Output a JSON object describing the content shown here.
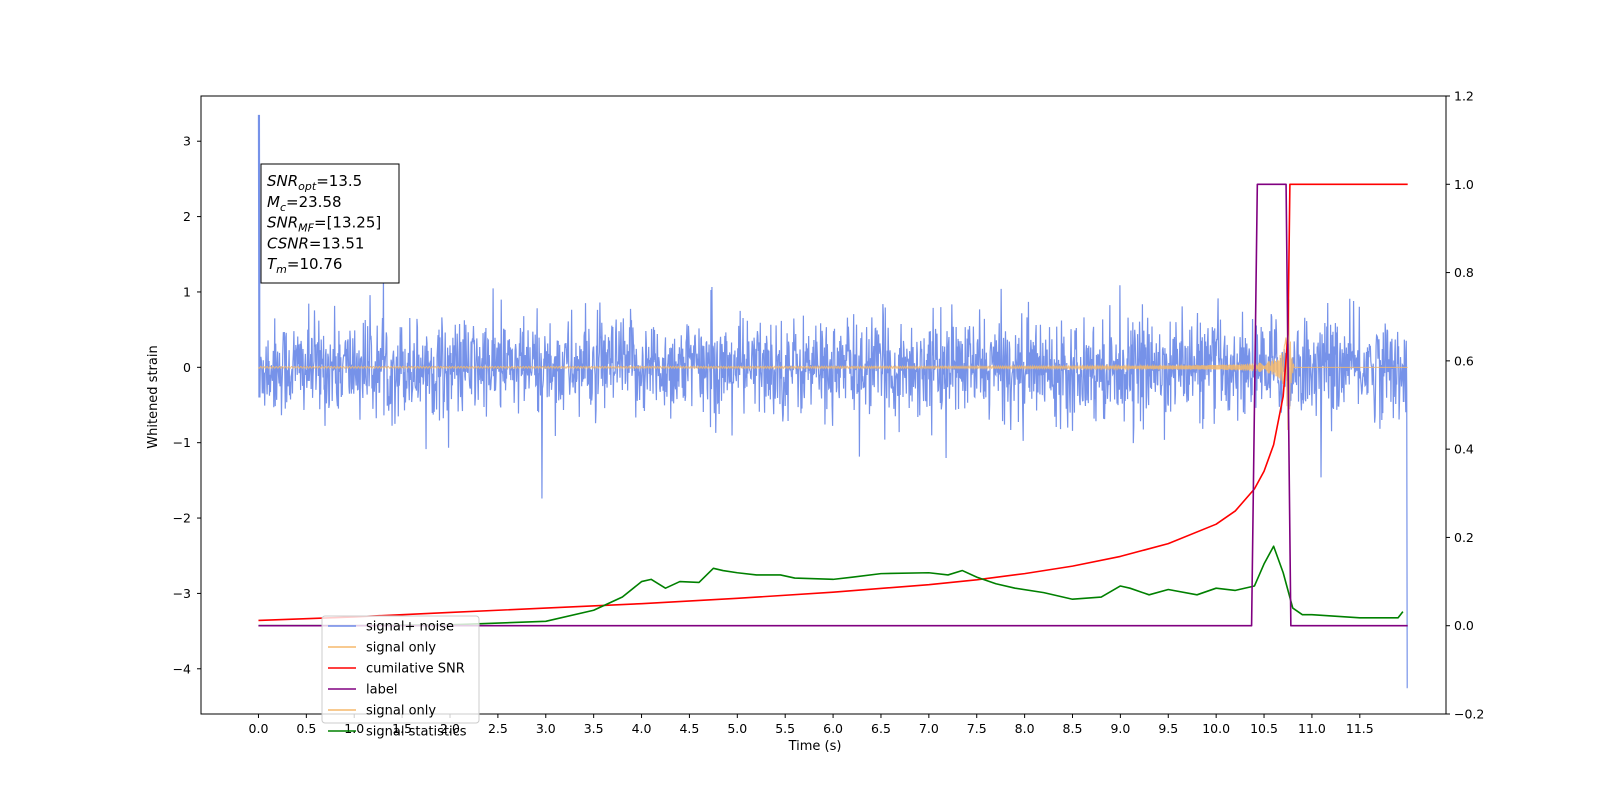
{
  "chart_data": {
    "type": "line",
    "xlabel": "Time (s)",
    "ylabel": "Whitened strain",
    "ylabel_right": "",
    "xlim": [
      -0.6,
      12.4
    ],
    "ylim": [
      -4.6,
      3.6
    ],
    "ylim_right": [
      -0.2,
      1.2
    ],
    "x_ticks": [
      "0.0",
      "0.5",
      "1.0",
      "1.5",
      "2.0",
      "2.5",
      "3.0",
      "3.5",
      "4.0",
      "4.5",
      "5.0",
      "5.5",
      "6.0",
      "6.5",
      "7.0",
      "7.5",
      "8.0",
      "8.5",
      "9.0",
      "9.5",
      "10.0",
      "10.5",
      "11.0",
      "11.5"
    ],
    "y_ticks": [
      "−4",
      "−3",
      "−2",
      "−1",
      "0",
      "1",
      "2",
      "3"
    ],
    "y_ticks_right": [
      "−0.2",
      "0.0",
      "0.2",
      "0.4",
      "0.6",
      "0.8",
      "1.0",
      "1.2"
    ],
    "grid": false,
    "legend_position": "lower-left",
    "annotation": {
      "lines": [
        {
          "sym": "SNR",
          "sub": "opt",
          "val": "=13.5"
        },
        {
          "sym": "M",
          "sub": "c",
          "val": "=23.58"
        },
        {
          "sym": "SNR",
          "sub": "MF",
          "val": "=[13.25]"
        },
        {
          "sym": "CSNR",
          "sub": "",
          "val": "=13.51"
        },
        {
          "sym": "T",
          "sub": "m",
          "val": "=10.76"
        }
      ]
    },
    "series": [
      {
        "name": "signal+ noise",
        "axis": "left",
        "color": "#6f8ce8",
        "note_values": "noise band approx ±0.7 (peaks ±1.5), spike to 3.35 near t=0.0, drop to −4.25 at t=12.0",
        "x_range": [
          0.0,
          12.0
        ]
      },
      {
        "name": "signal only",
        "axis": "left",
        "color": "#f5b96b",
        "x_range": [
          0.0,
          12.0
        ],
        "chirp_merger_time": 10.76,
        "peak_amplitude": 0.9
      },
      {
        "name": "cumilative SNR",
        "axis": "right",
        "color": "#ff0000",
        "x": [
          0.0,
          1.0,
          2.0,
          3.0,
          4.0,
          5.0,
          6.0,
          7.0,
          7.5,
          8.0,
          8.5,
          9.0,
          9.5,
          10.0,
          10.2,
          10.4,
          10.5,
          10.6,
          10.7,
          10.75,
          10.77,
          12.0
        ],
        "values": [
          0.012,
          0.02,
          0.03,
          0.04,
          0.05,
          0.062,
          0.076,
          0.093,
          0.104,
          0.118,
          0.135,
          0.157,
          0.186,
          0.23,
          0.26,
          0.31,
          0.35,
          0.41,
          0.52,
          0.66,
          1.0,
          1.0
        ]
      },
      {
        "name": "label",
        "axis": "right",
        "color": "#800080",
        "x": [
          0.0,
          10.37,
          10.43,
          10.73,
          10.78,
          12.0
        ],
        "values": [
          0.0,
          0.0,
          1.0,
          1.0,
          0.0,
          0.0
        ]
      },
      {
        "name": "signal only",
        "axis": "right",
        "color": "#f5b96b",
        "hidden_in_plot": true
      },
      {
        "name": "signal statistics",
        "axis": "right",
        "color": "#008000",
        "x": [
          0.0,
          1.0,
          2.0,
          3.0,
          3.5,
          3.8,
          4.0,
          4.1,
          4.25,
          4.4,
          4.6,
          4.75,
          4.85,
          5.0,
          5.2,
          5.45,
          5.6,
          6.0,
          6.2,
          6.5,
          7.0,
          7.2,
          7.35,
          7.5,
          7.7,
          7.9,
          8.2,
          8.5,
          8.8,
          9.0,
          9.1,
          9.3,
          9.5,
          9.8,
          10.0,
          10.2,
          10.4,
          10.5,
          10.6,
          10.7,
          10.8,
          10.9,
          11.0,
          11.5,
          11.9,
          11.95
        ],
        "values": [
          0.0,
          0.0,
          0.002,
          0.01,
          0.035,
          0.065,
          0.1,
          0.105,
          0.085,
          0.1,
          0.098,
          0.13,
          0.125,
          0.12,
          0.115,
          0.115,
          0.108,
          0.105,
          0.11,
          0.118,
          0.12,
          0.115,
          0.125,
          0.11,
          0.095,
          0.085,
          0.075,
          0.06,
          0.065,
          0.09,
          0.085,
          0.07,
          0.082,
          0.07,
          0.085,
          0.08,
          0.09,
          0.14,
          0.18,
          0.12,
          0.04,
          0.025,
          0.025,
          0.018,
          0.018,
          0.032
        ]
      }
    ],
    "legend": [
      {
        "label": "signal+ noise",
        "color": "#6f8ce8"
      },
      {
        "label": "signal only",
        "color": "#f5b96b"
      },
      {
        "label": "cumilative SNR",
        "color": "#ff0000"
      },
      {
        "label": "label",
        "color": "#800080"
      },
      {
        "label": "signal only",
        "color": "#f5b96b"
      },
      {
        "label": "signal statistics",
        "color": "#008000"
      }
    ]
  }
}
